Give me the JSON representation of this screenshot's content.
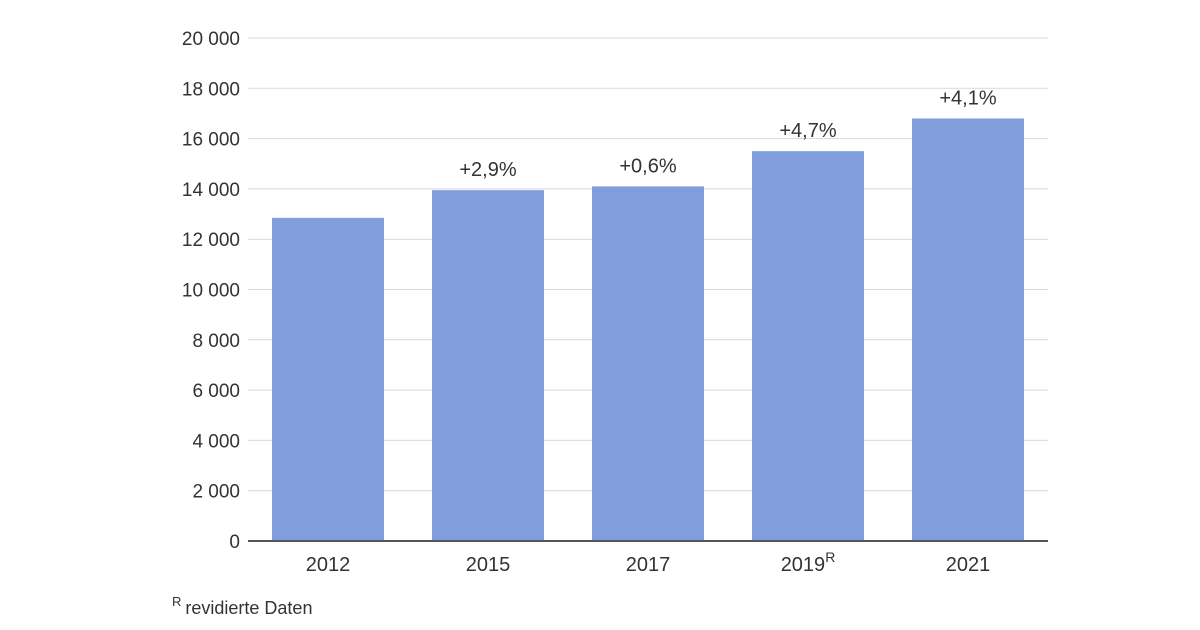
{
  "chart_data": {
    "type": "bar",
    "categories": [
      "2012",
      "2015",
      "2017",
      "2019",
      "2021"
    ],
    "category_superscripts": [
      "",
      "",
      "",
      "R",
      ""
    ],
    "values": [
      12850,
      13950,
      14100,
      15500,
      16800
    ],
    "data_labels": [
      "",
      "+2,9%",
      "+0,6%",
      "+4,7%",
      "+4,1%"
    ],
    "ylim": [
      0,
      20000
    ],
    "yticks": [
      0,
      2000,
      4000,
      6000,
      8000,
      10000,
      12000,
      14000,
      16000,
      18000,
      20000
    ],
    "ytick_labels": [
      "0",
      "2 000",
      "4 000",
      "6 000",
      "8 000",
      "10 000",
      "12 000",
      "14 000",
      "16 000",
      "18 000",
      "20 000"
    ],
    "grid": true,
    "bar_color": "#7f9edb",
    "title": "",
    "xlabel": "",
    "ylabel": ""
  },
  "footnote": {
    "mark": "R",
    "text": "revidierte Daten"
  }
}
